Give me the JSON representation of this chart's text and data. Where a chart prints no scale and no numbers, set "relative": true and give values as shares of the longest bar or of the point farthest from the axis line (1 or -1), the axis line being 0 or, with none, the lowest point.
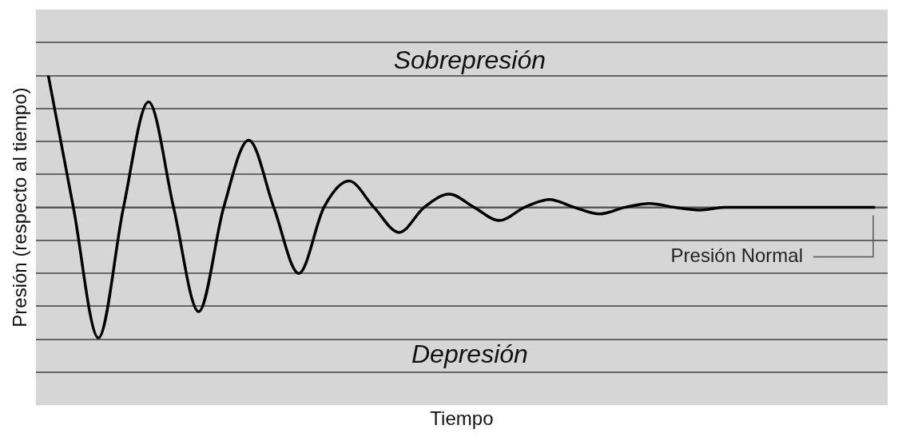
{
  "chart_data": {
    "type": "line",
    "relative": true,
    "xlabel": "Tiempo",
    "ylabel": "Presión (respecto al tiempo)",
    "categories": [
      null,
      null,
      null,
      null,
      null,
      null,
      null,
      null,
      null,
      null,
      null,
      null,
      null,
      null,
      null,
      null,
      null,
      null,
      null,
      null,
      null,
      null,
      null,
      null,
      null,
      null,
      null,
      null,
      null,
      null,
      null,
      null,
      null,
      null
    ],
    "series": [
      {
        "color": "#000000",
        "values": [
          1,
          0,
          -0.99,
          0,
          0.8,
          0,
          -0.79,
          0,
          0.51,
          0,
          -0.5,
          0,
          0.2,
          0,
          -0.19,
          0,
          0.1,
          0,
          -0.1,
          0,
          0.06,
          0,
          -0.05,
          0,
          0.03,
          0,
          -0.02,
          0,
          0,
          0,
          0,
          0,
          0,
          0
        ]
      }
    ],
    "ref_lines": [
      {
        "axis": "y",
        "value": 0,
        "label": "Presión Normal",
        "color": "#555555"
      }
    ],
    "annotations": [
      "Sobrepresión",
      "Depresión"
    ],
    "grid": "y",
    "legend": false,
    "marker": "none",
    "line_style": "solid"
  }
}
